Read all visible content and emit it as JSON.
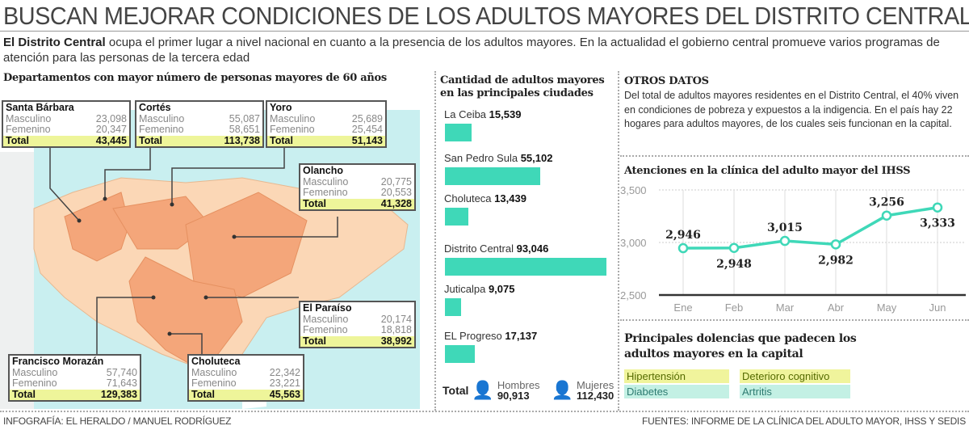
{
  "title": "BUSCAN MEJORAR CONDICIONES DE LOS ADULTOS MAYORES DEL DISTRITO CENTRAL",
  "intro": {
    "bold": "El Distrito Central",
    "text": " ocupa el primer lugar a nivel nacional en cuanto a la presencia de los adultos mayores. En la actualidad el gobierno central promueve varios programas de atención para las personas de la tercera edad"
  },
  "map": {
    "heading": "Departamentos con mayor número de personas mayores de 60 años",
    "labels": {
      "m": "Masculino",
      "f": "Femenino",
      "t": "Total"
    },
    "departments": [
      {
        "name": "Santa Bárbara",
        "masculino": "23,098",
        "femenino": "20,347",
        "total": "43,445"
      },
      {
        "name": "Cortés",
        "masculino": "55,087",
        "femenino": "58,651",
        "total": "113,738"
      },
      {
        "name": "Yoro",
        "masculino": "25,689",
        "femenino": "25,454",
        "total": "51,143"
      },
      {
        "name": "Olancho",
        "masculino": "20,775",
        "femenino": "20,553",
        "total": "41,328"
      },
      {
        "name": "El Paraíso",
        "masculino": "20,174",
        "femenino": "18,818",
        "total": "38,992"
      },
      {
        "name": "Francisco Morazán",
        "masculino": "57,740",
        "femenino": "71,643",
        "total": "129,383"
      },
      {
        "name": "Choluteca",
        "masculino": "22,342",
        "femenino": "23,221",
        "total": "45,563"
      }
    ],
    "colors": {
      "sea": "#c9eff0",
      "land": "#fbd7b6",
      "highlight": "#f4a67a"
    }
  },
  "chart_data": [
    {
      "type": "bar",
      "title": "Cantidad de adultos mayores en las principales ciudades",
      "orientation": "horizontal",
      "categories": [
        "La Ceiba",
        "San Pedro Sula",
        "Choluteca",
        "Distrito Central",
        "Juticalpa",
        "EL Progreso"
      ],
      "values": [
        15539,
        55102,
        13439,
        93046,
        9075,
        17137
      ],
      "labels": [
        "15,539",
        "55,102",
        "13,439",
        "93,046",
        "9,075",
        "17,137"
      ],
      "color": "#3fd8b8"
    },
    {
      "type": "line",
      "title": "Atenciones en la clínica del adulto mayor del IHSS",
      "categories": [
        "Ene",
        "Feb",
        "Mar",
        "Abr",
        "May",
        "Jun"
      ],
      "values": [
        2946,
        2948,
        3015,
        2982,
        3256,
        3333
      ],
      "labels": [
        "2,946",
        "2,948",
        "3,015",
        "2,982",
        "3,256",
        "3,333"
      ],
      "ylim": [
        2500,
        3500
      ],
      "yticks": [
        "2,500",
        "3,000",
        "3,500"
      ],
      "grid": true,
      "color": "#3fd8b8"
    }
  ],
  "totals": {
    "label": "Total",
    "hombres_label": "Hombres",
    "hombres": "90,913",
    "mujeres_label": "Mujeres",
    "mujeres": "112,430",
    "hombres_color": "#5bc0ee",
    "mujeres_color": "#ee44cc"
  },
  "otros": {
    "heading": "OTROS DATOS",
    "text": "Del total de adultos mayores residentes en el Distrito Central, el 40% viven en condiciones de pobreza y expuestos a la indigencia. En el país hay 22 hogares para adultos mayores, de los cuales seis funcionan en la capital."
  },
  "dolencias": {
    "heading": "Principales dolencias que padecen los adultos mayores en la capital",
    "items": [
      "Hipertensión",
      "Deterioro cognitivo",
      "Diabetes",
      "Artritis"
    ]
  },
  "footer": {
    "left": "INFOGRAFÍA: EL HERALDO / MANUEL RODRÍGUEZ",
    "right": "FUENTES: INFORME DE LA CLÍNICA DEL ADULTO MAYOR, IHSS Y SEDIS"
  }
}
